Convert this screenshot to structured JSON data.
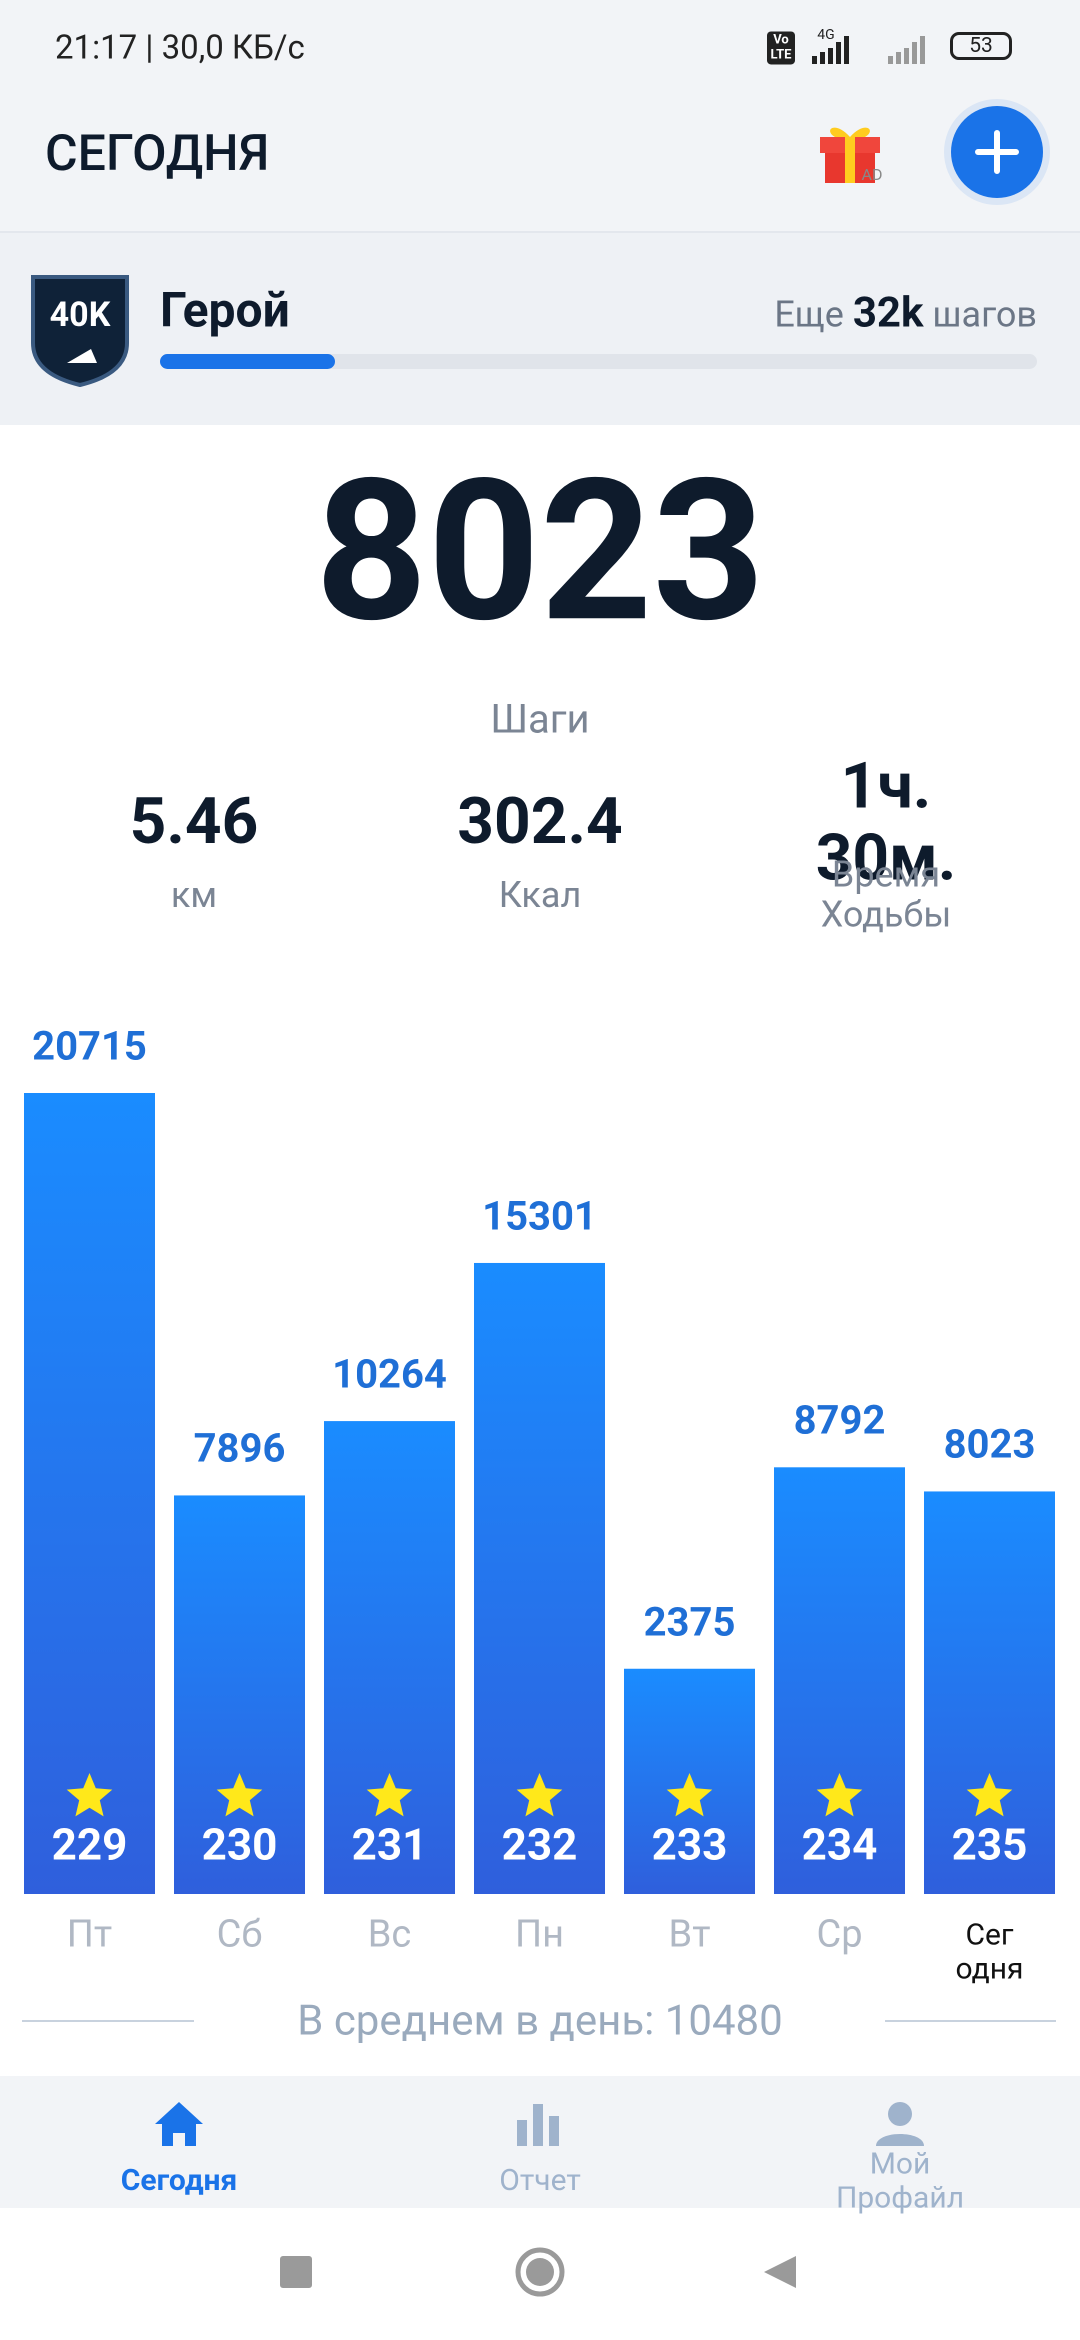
{
  "status_bar": {
    "time": "21:17 | 30,0 КБ/с",
    "volte": "Vo LTE",
    "network": "4G",
    "battery": "53"
  },
  "header": {
    "title": "СЕГОДНЯ",
    "gift_badge": "AD"
  },
  "level": {
    "badge": "40K",
    "name": "Герой",
    "remaining_prefix": "Еще",
    "remaining": "32k",
    "remaining_suffix": "шагов",
    "progress_percent": 20
  },
  "summary": {
    "steps": "8023",
    "steps_label": "Шаги",
    "stats": [
      {
        "value": "5.46",
        "label": "км"
      },
      {
        "value": "302.4",
        "label": "Ккал"
      },
      {
        "value": "1ч. 30м.",
        "label": "Время Ходьбы"
      }
    ]
  },
  "chart_data": {
    "type": "bar",
    "categories": [
      "Пт",
      "Сб",
      "Вс",
      "Пн",
      "Вт",
      "Ср",
      "Сег\nодня"
    ],
    "values": [
      20715,
      7896,
      10264,
      15301,
      2375,
      8792,
      8023
    ],
    "day_numbers": [
      229,
      230,
      231,
      232,
      233,
      234,
      235
    ],
    "ylim": [
      -4800,
      20715
    ],
    "color": "#1a8cff",
    "average": "В среднем в день: 10480"
  },
  "nav": {
    "items": [
      "Сегодня",
      "Отчет",
      "Мой Профайл"
    ],
    "active": 0
  }
}
